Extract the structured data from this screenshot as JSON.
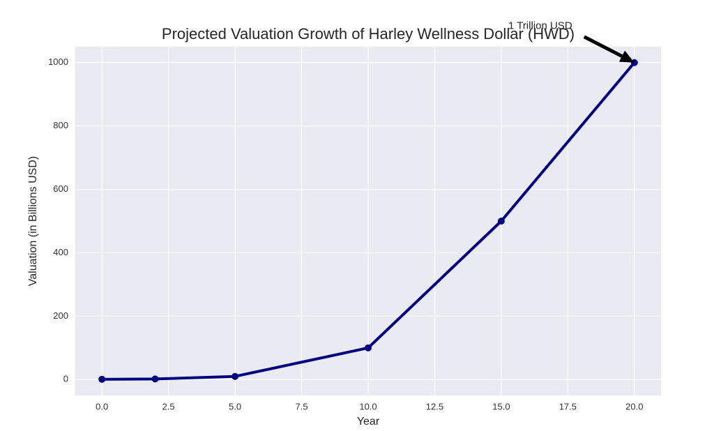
{
  "chart_data": {
    "type": "line",
    "title": "Projected Valuation Growth of Harley Wellness Dollar (HWD)",
    "x_label": "Year",
    "y_label": "Valuation (in Billions USD)",
    "x": [
      0,
      2,
      5,
      10,
      15,
      20
    ],
    "series": [
      {
        "color": "#000080",
        "values": [
          1,
          2,
          10,
          100,
          500,
          1000
        ]
      }
    ],
    "annotation": "1 Trillion USD",
    "xlim": [
      -1,
      21
    ],
    "ylim": [
      -50,
      1050
    ],
    "xticks": [
      {
        "value": 0,
        "label": "0.0"
      },
      {
        "value": 2.5,
        "label": "2.5"
      },
      {
        "value": 5,
        "label": "5.0"
      },
      {
        "value": 7.5,
        "label": "7.5"
      },
      {
        "value": 10,
        "label": "10.0"
      },
      {
        "value": 12.5,
        "label": "12.5"
      },
      {
        "value": 15,
        "label": "15.0"
      },
      {
        "value": 17.5,
        "label": "17.5"
      },
      {
        "value": 20,
        "label": "20.0"
      }
    ],
    "yticks": [
      0,
      200,
      400,
      600,
      800,
      1000
    ],
    "grid": true
  }
}
